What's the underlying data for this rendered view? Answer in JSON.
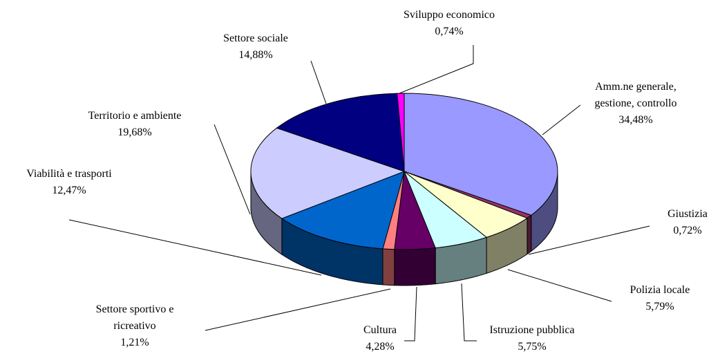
{
  "chart_data": {
    "type": "pie3d",
    "categories": [
      "Amm.ne generale,\ngestione, controllo",
      "Giustizia",
      "Polizia locale",
      "Istruzione pubblica",
      "Cultura",
      "Settore sportivo e\nricreativo",
      "Viabilità e trasporti",
      "Territorio e ambiente",
      "Settore sociale",
      "Sviluppo economico"
    ],
    "values": [
      34.48,
      0.72,
      5.79,
      5.75,
      4.28,
      1.21,
      12.47,
      19.68,
      14.88,
      0.74
    ],
    "value_labels": [
      "34,48%",
      "0,72%",
      "5,79%",
      "5,75%",
      "4,28%",
      "1,21%",
      "12,47%",
      "19,68%",
      "14,88%",
      "0,74%"
    ],
    "colors": [
      "#9999ff",
      "#993366",
      "#ffffcc",
      "#ccffff",
      "#660066",
      "#ff8080",
      "#0066cc",
      "#ccccff",
      "#000080",
      "#ff00ff"
    ]
  }
}
